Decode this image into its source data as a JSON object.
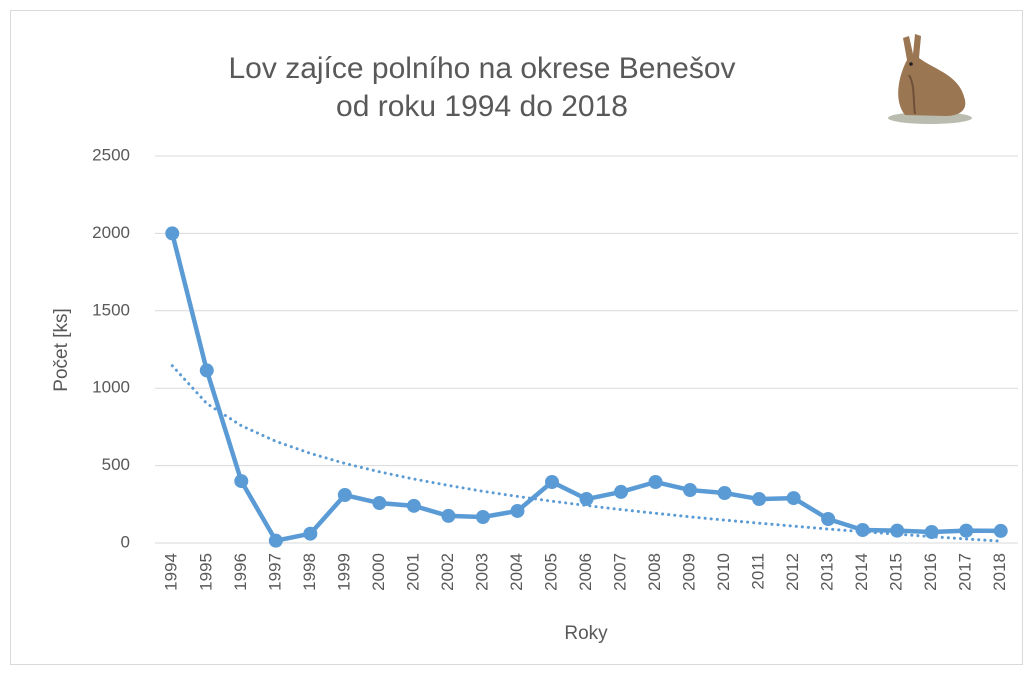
{
  "chart_data": {
    "type": "line",
    "title": [
      "Lov zajíce polního na okrese Benešov",
      "od roku 1994 do 2018"
    ],
    "x_label": "Roky",
    "y_label": "Počet [ks]",
    "categories": [
      "1994",
      "1995",
      "1996",
      "1997",
      "1998",
      "1999",
      "2000",
      "2001",
      "2002",
      "2003",
      "2004",
      "2005",
      "2006",
      "2007",
      "2008",
      "2009",
      "2010",
      "2011",
      "2012",
      "2013",
      "2014",
      "2015",
      "2016",
      "2017",
      "2018"
    ],
    "series": [
      {
        "color": "#5b9bd5",
        "values": [
          2000,
          1115,
          400,
          15,
          60,
          310,
          258,
          240,
          175,
          168,
          207,
          394,
          284,
          330,
          394,
          342,
          323,
          284,
          290,
          155,
          84,
          80,
          71,
          80,
          78
        ]
      }
    ],
    "trendline": {
      "color": "#5b9bd5",
      "style": "dotted",
      "values": [
        1145,
        901,
        758,
        657,
        579,
        514,
        460,
        413,
        372,
        334,
        301,
        270,
        242,
        216,
        192,
        169,
        148,
        128,
        109,
        90,
        73,
        57,
        41,
        26,
        12
      ]
    },
    "ylim": [
      0,
      2500
    ],
    "yticks": [
      0,
      500,
      1000,
      1500,
      2000,
      2500
    ],
    "grid": true
  }
}
